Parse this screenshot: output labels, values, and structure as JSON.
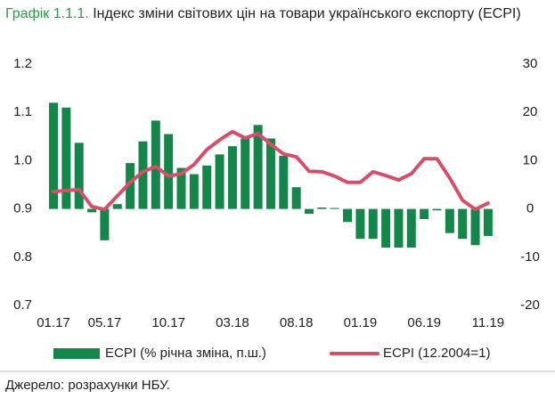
{
  "chart_data": {
    "type": "bar-line",
    "title_label": "Графік 1.1.1.",
    "title": "Індекс  зміни світових цін на товари українського експорту (ECPI)",
    "source": "Джерело: розрахунки НБУ.",
    "categories": [
      "01.17",
      null,
      null,
      null,
      "05.17",
      null,
      null,
      null,
      null,
      "10.17",
      null,
      null,
      null,
      null,
      "03.18",
      null,
      null,
      null,
      null,
      "08.18",
      null,
      null,
      null,
      null,
      "01.19",
      null,
      null,
      null,
      null,
      "06.19",
      null,
      null,
      null,
      null,
      "11.19"
    ],
    "ylim": [
      0.7,
      1.2
    ],
    "yticks": [
      0.7,
      0.8,
      0.9,
      {
        "value": 1,
        "label": "1.0"
      },
      1.1,
      1.2
    ],
    "y2lim": [
      -20,
      30
    ],
    "y2ticks": [
      -20,
      -10,
      0,
      10,
      20,
      30
    ],
    "grid": false,
    "series": [
      {
        "name": "ECPI (% річна зміна, п.ш.)",
        "type": "bar",
        "axis": "y2",
        "color": "#14864a",
        "values": [
          22,
          21,
          13.7,
          -0.7,
          -6.5,
          1,
          9.5,
          14,
          18.3,
          15.5,
          8.5,
          7.2,
          9,
          11.3,
          13,
          14.6,
          17.4,
          14.6,
          11,
          4.5,
          -1,
          0.3,
          0.2,
          -2.7,
          -6.2,
          -6.2,
          -8,
          -8,
          -8,
          -2.1,
          -0.3,
          -5,
          -6.2,
          -7.5,
          -5.6
        ]
      },
      {
        "name": "ECPI (12.2004=1)",
        "type": "line",
        "color": "#d4506a",
        "values": [
          0.936,
          0.938,
          0.94,
          0.905,
          0.899,
          0.927,
          0.955,
          0.977,
          0.988,
          0.968,
          0.973,
          0.992,
          1.023,
          1.043,
          1.06,
          1.047,
          1.056,
          1.034,
          1.014,
          1.008,
          0.978,
          0.977,
          0.968,
          0.955,
          0.955,
          0.977,
          0.969,
          0.96,
          0.973,
          1.004,
          1.004,
          0.964,
          0.918,
          0.899,
          0.912
        ]
      }
    ]
  }
}
